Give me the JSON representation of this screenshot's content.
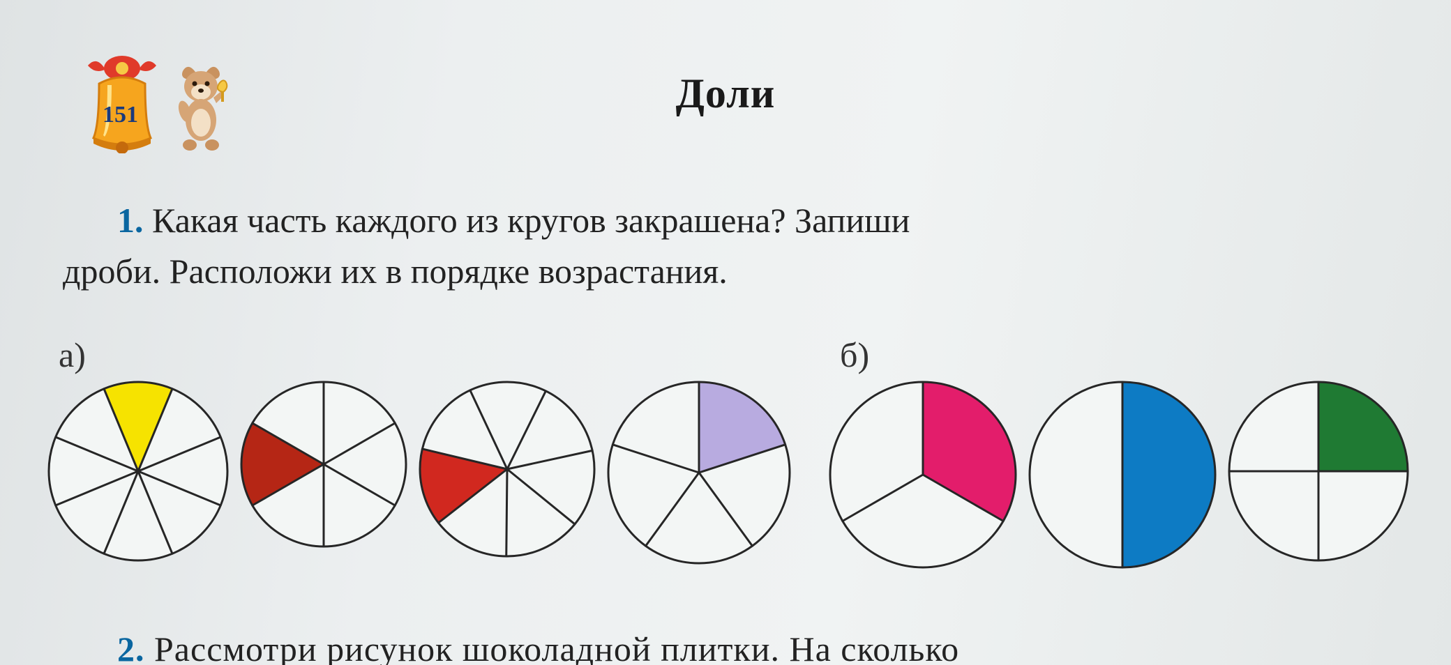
{
  "page_number": "151",
  "title": "Доли",
  "task_number": "1.",
  "task_line1": "Какая часть каждого из кругов закрашена? Запиши",
  "task_line2": "дроби. Расположи их в порядке возрастания.",
  "group_a_label": "а)",
  "group_b_label": "б)",
  "task2_number": "2.",
  "task2_text": "Рассмотри рисунок шоколадной плитки. На сколько",
  "pie_style": {
    "outline_color": "#262626",
    "outline_width": 3,
    "empty_fill": "#f3f6f5"
  },
  "circles_a": [
    {
      "radius": 128,
      "slices": 8,
      "shaded_slices": [
        0
      ],
      "shaded_color": "#f6e300",
      "start_angle": -112.5
    },
    {
      "radius": 118,
      "slices": 6,
      "shaded_slices": [
        0
      ],
      "shaded_color": "#b52615",
      "start_angle": 150
    },
    {
      "radius": 125,
      "slices": 7,
      "shaded_slices": [
        0
      ],
      "shaded_color": "#d1281f",
      "start_angle": 142
    },
    {
      "radius": 130,
      "slices": 5,
      "shaded_slices": [
        0
      ],
      "shaded_color": "#b8abe0",
      "start_angle": -90
    }
  ],
  "circles_b": [
    {
      "radius": 133,
      "slices": 3,
      "shaded_slices": [
        0
      ],
      "shaded_color": "#e31d6b",
      "start_angle": -90
    },
    {
      "radius": 133,
      "slices": 2,
      "shaded_slices": [
        0
      ],
      "shaded_color": "#0d7bc4",
      "start_angle": -90
    },
    {
      "radius": 128,
      "slices": 4,
      "shaded_slices": [
        0
      ],
      "shaded_color": "#1f7a33",
      "start_angle": -90
    }
  ]
}
